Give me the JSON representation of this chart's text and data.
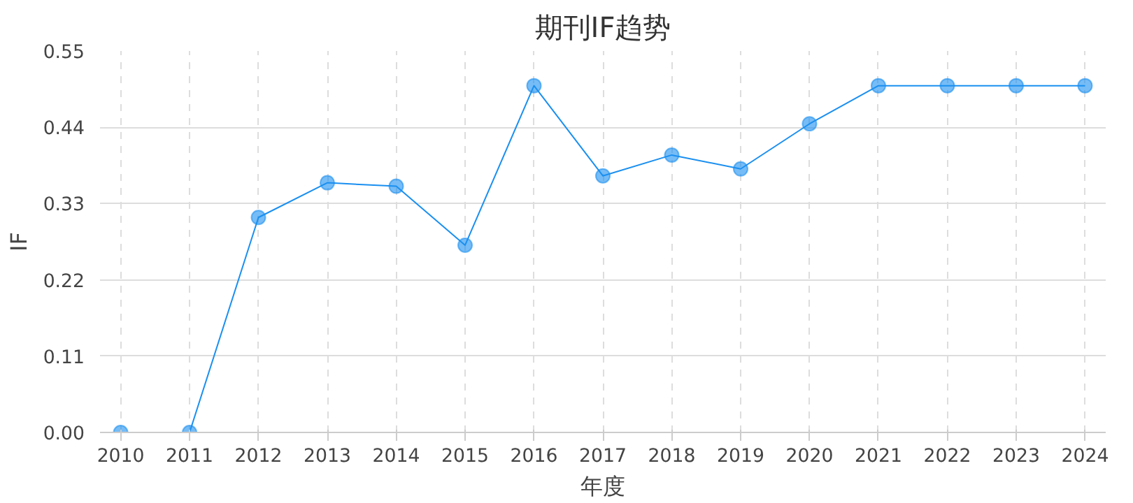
{
  "chart_data": {
    "type": "line",
    "title": "期刊IF趋势",
    "xlabel": "年度",
    "ylabel": "IF",
    "categories": [
      "2010",
      "2011",
      "2012",
      "2013",
      "2014",
      "2015",
      "2016",
      "2017",
      "2018",
      "2019",
      "2020",
      "2021",
      "2022",
      "2023",
      "2024"
    ],
    "series": [
      {
        "color": "#1a8ff0",
        "values": [
          0,
          0,
          0.31,
          0.36,
          0.355,
          0.27,
          0.5,
          0.37,
          0.4,
          0.38,
          0.445,
          0.5,
          0.5,
          0.5,
          0.5
        ]
      }
    ],
    "ylim": [
      0,
      0.55
    ],
    "yticks": [
      {
        "value": 0,
        "label": "0.00"
      },
      {
        "value": 0.11,
        "label": "0.11"
      },
      {
        "value": 0.22,
        "label": "0.22"
      },
      {
        "value": 0.33,
        "label": "0.33"
      },
      {
        "value": 0.44,
        "label": "0.44"
      },
      {
        "value": 0.55,
        "label": "0.55"
      }
    ],
    "grid": true,
    "marker": "circle",
    "line_style": "solid"
  }
}
